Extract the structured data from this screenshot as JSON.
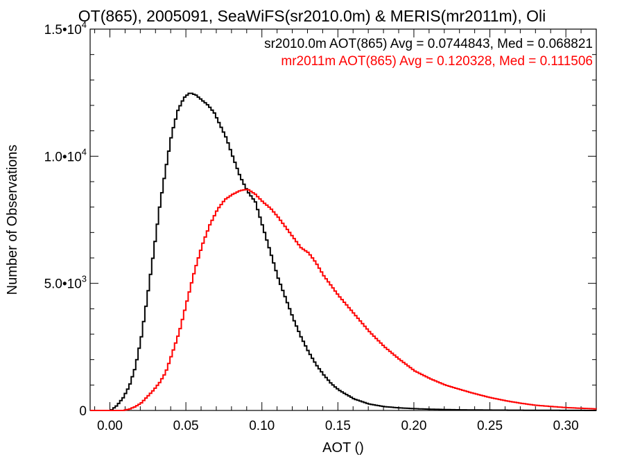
{
  "chart_data": {
    "type": "line",
    "title": "OT(865), 2005091, SeaWiFS(sr2010.0m) & MERIS(mr2011m), Oli",
    "xlabel": "AOT ()",
    "ylabel": "Number of Observations",
    "xlim": [
      -0.013,
      0.32
    ],
    "ylim": [
      0,
      15000
    ],
    "xticks": [
      0.0,
      0.05,
      0.1,
      0.15,
      0.2,
      0.25,
      0.3
    ],
    "xtick_labels": [
      "0.00",
      "0.05",
      "0.10",
      "0.15",
      "0.20",
      "0.25",
      "0.30"
    ],
    "yticks": [
      0,
      5000,
      10000,
      15000
    ],
    "ytick_labels": [
      {
        "mantissa": "0",
        "exp": ""
      },
      {
        "mantissa": "5.0•10",
        "exp": "3"
      },
      {
        "mantissa": "1.0•10",
        "exp": "4"
      },
      {
        "mantissa": "1.5•10",
        "exp": "4"
      }
    ],
    "grid": false,
    "legend_placement": "top-right",
    "series": [
      {
        "name": "sr2010.0m",
        "label": "sr2010.0m AOT(865) Avg = 0.0744843, Med = 0.068821",
        "color": "#000000",
        "x": [
          -0.013,
          0.0,
          0.004,
          0.008,
          0.012,
          0.016,
          0.02,
          0.024,
          0.028,
          0.032,
          0.036,
          0.04,
          0.044,
          0.048,
          0.052,
          0.056,
          0.06,
          0.064,
          0.068,
          0.072,
          0.076,
          0.08,
          0.085,
          0.09,
          0.095,
          0.1,
          0.105,
          0.11,
          0.115,
          0.12,
          0.125,
          0.13,
          0.135,
          0.14,
          0.145,
          0.15,
          0.16,
          0.17,
          0.18,
          0.19,
          0.2,
          0.21,
          0.22,
          0.23,
          0.25,
          0.27,
          0.29,
          0.32
        ],
        "y": [
          0,
          0,
          200,
          500,
          950,
          1700,
          2900,
          4500,
          6200,
          8000,
          9500,
          10900,
          11800,
          12300,
          12500,
          12400,
          12200,
          12000,
          11700,
          11200,
          10700,
          10000,
          9200,
          8600,
          8200,
          7200,
          6200,
          5200,
          4400,
          3600,
          2900,
          2300,
          1800,
          1400,
          1050,
          800,
          450,
          250,
          150,
          100,
          70,
          50,
          35,
          25,
          15,
          10,
          5,
          0
        ]
      },
      {
        "name": "mr2011m",
        "label": "mr2011m AOT(865) Avg = 0.120328, Med = 0.111506",
        "color": "#ff0000",
        "x": [
          -0.013,
          0.008,
          0.012,
          0.016,
          0.02,
          0.024,
          0.028,
          0.032,
          0.036,
          0.04,
          0.045,
          0.05,
          0.055,
          0.06,
          0.065,
          0.07,
          0.075,
          0.08,
          0.085,
          0.09,
          0.095,
          0.1,
          0.105,
          0.11,
          0.115,
          0.12,
          0.125,
          0.13,
          0.135,
          0.14,
          0.145,
          0.15,
          0.16,
          0.17,
          0.18,
          0.19,
          0.2,
          0.21,
          0.22,
          0.23,
          0.24,
          0.25,
          0.26,
          0.27,
          0.28,
          0.3,
          0.32
        ],
        "y": [
          0,
          0,
          50,
          150,
          300,
          550,
          800,
          1100,
          1500,
          2200,
          3100,
          4300,
          5500,
          6500,
          7300,
          7900,
          8300,
          8500,
          8650,
          8700,
          8500,
          8200,
          7950,
          7600,
          7200,
          6800,
          6400,
          6200,
          5800,
          5300,
          4900,
          4500,
          3800,
          3100,
          2500,
          2000,
          1550,
          1250,
          1000,
          820,
          650,
          500,
          380,
          280,
          200,
          110,
          60
        ]
      }
    ]
  }
}
